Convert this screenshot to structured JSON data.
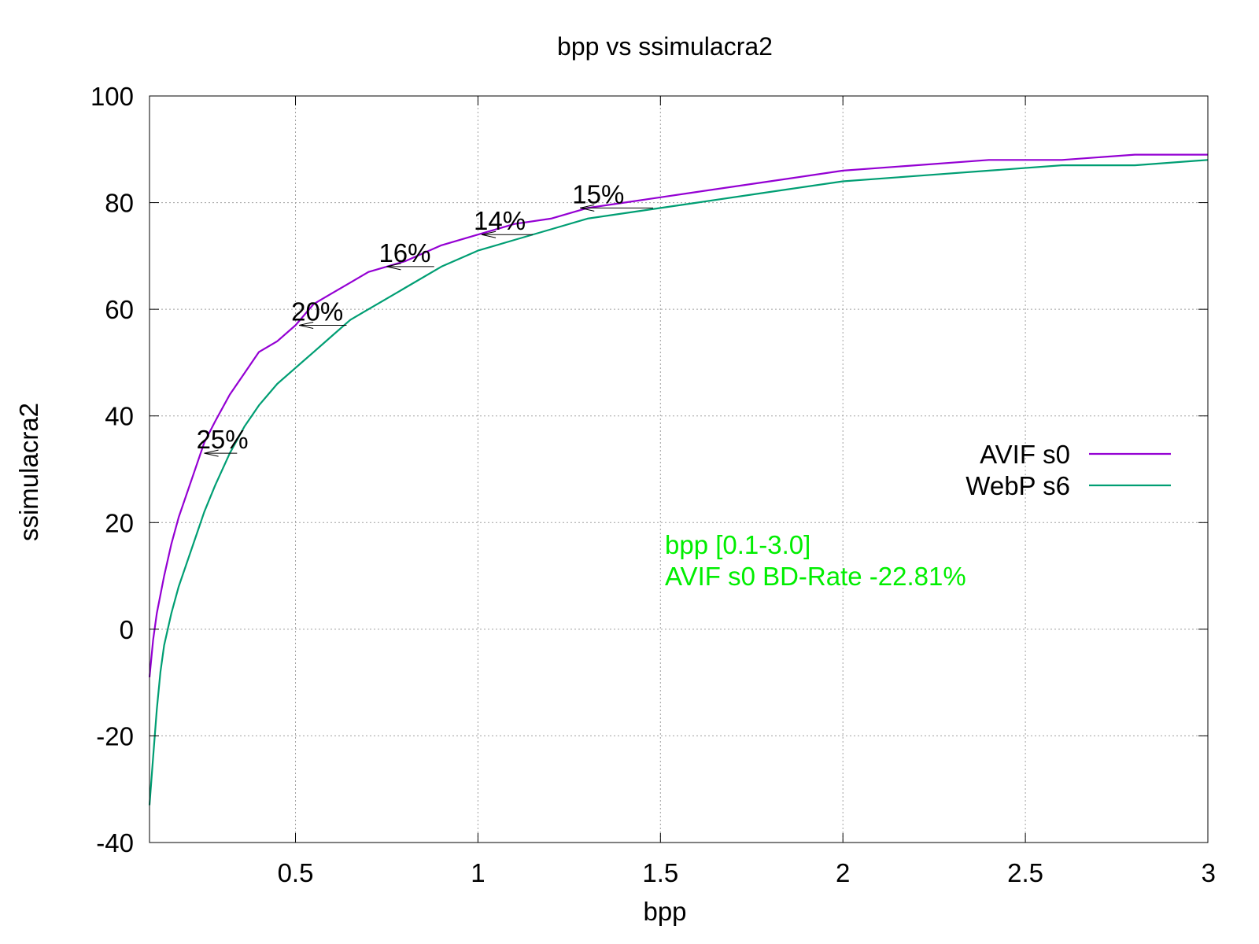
{
  "chart_data": {
    "type": "line",
    "title": "bpp vs ssimulacra2",
    "xlabel": "bpp",
    "ylabel": "ssimulacra2",
    "xlim": [
      0.1,
      3.0
    ],
    "ylim": [
      -40,
      100
    ],
    "xticks": [
      0.5,
      1,
      1.5,
      2,
      2.5,
      3
    ],
    "xtick_labels": [
      "0.5",
      "1",
      "1.5",
      "2",
      "2.5",
      "3"
    ],
    "yticks": [
      -40,
      -20,
      0,
      20,
      40,
      60,
      80,
      100
    ],
    "ytick_labels": [
      "-40",
      "-20",
      "0",
      "20",
      "40",
      "60",
      "80",
      "100"
    ],
    "grid": true,
    "legend_position": "right",
    "series": [
      {
        "name": "AVIF s0",
        "color": "#9400d3",
        "x": [
          0.1,
          0.11,
          0.12,
          0.14,
          0.16,
          0.18,
          0.2,
          0.22,
          0.25,
          0.28,
          0.32,
          0.36,
          0.4,
          0.45,
          0.5,
          0.55,
          0.6,
          0.65,
          0.7,
          0.75,
          0.8,
          0.9,
          1.0,
          1.1,
          1.2,
          1.3,
          1.4,
          1.5,
          1.6,
          1.8,
          2.0,
          2.2,
          2.4,
          2.6,
          2.8,
          3.0
        ],
        "y": [
          -9,
          -2,
          3,
          10,
          16,
          21,
          25,
          29,
          35,
          39,
          44,
          48,
          52,
          54,
          57,
          61,
          63,
          65,
          67,
          68,
          69,
          72,
          74,
          76,
          77,
          79,
          80,
          81,
          82,
          84,
          86,
          87,
          88,
          88,
          89,
          89
        ]
      },
      {
        "name": "WebP s6",
        "color": "#009e73",
        "x": [
          0.1,
          0.11,
          0.12,
          0.13,
          0.14,
          0.16,
          0.18,
          0.2,
          0.22,
          0.25,
          0.28,
          0.32,
          0.36,
          0.4,
          0.45,
          0.5,
          0.55,
          0.6,
          0.65,
          0.7,
          0.75,
          0.8,
          0.9,
          1.0,
          1.1,
          1.2,
          1.3,
          1.4,
          1.5,
          1.6,
          1.8,
          2.0,
          2.2,
          2.4,
          2.6,
          2.8,
          3.0
        ],
        "y": [
          -33,
          -24,
          -15,
          -8,
          -3,
          3,
          8,
          12,
          16,
          22,
          27,
          33,
          38,
          42,
          46,
          49,
          52,
          55,
          58,
          60,
          62,
          64,
          68,
          71,
          73,
          75,
          77,
          78,
          79,
          80,
          82,
          84,
          85,
          86,
          87,
          87,
          88
        ]
      }
    ],
    "annotations": [
      {
        "label": "25%",
        "y": 33,
        "x_start": 0.34,
        "x_end": 0.25
      },
      {
        "label": "20%",
        "y": 57,
        "x_start": 0.64,
        "x_end": 0.51
      },
      {
        "label": "16%",
        "y": 68,
        "x_start": 0.88,
        "x_end": 0.75
      },
      {
        "label": "14%",
        "y": 74,
        "x_start": 1.15,
        "x_end": 1.01
      },
      {
        "label": "15%",
        "y": 79,
        "x_start": 1.48,
        "x_end": 1.28
      }
    ],
    "info_text": {
      "line1": "bpp [0.1-3.0]",
      "line2": "AVIF s0 BD-Rate -22.81%",
      "color": "#00ee00"
    }
  }
}
